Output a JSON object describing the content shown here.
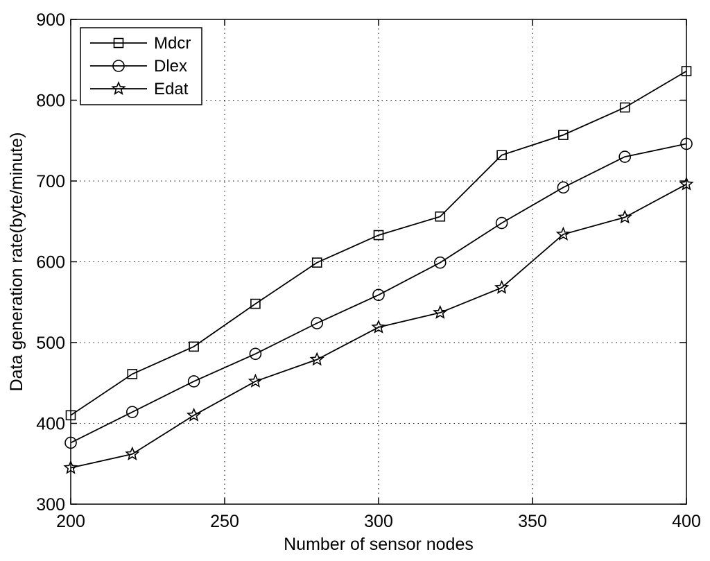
{
  "chart_data": {
    "type": "line",
    "title": "",
    "xlabel": "Number of sensor nodes",
    "ylabel": "Data generation rate(byte/minute)",
    "xlim": [
      200,
      400
    ],
    "ylim": [
      300,
      900
    ],
    "xticks": [
      200,
      250,
      300,
      350,
      400
    ],
    "yticks": [
      300,
      400,
      500,
      600,
      700,
      800,
      900
    ],
    "grid": true,
    "legend_position": "top-left",
    "x": [
      200,
      220,
      240,
      260,
      280,
      300,
      320,
      340,
      360,
      380,
      400
    ],
    "series": [
      {
        "name": "Mdcr",
        "marker": "square",
        "values": [
          410,
          461,
          495,
          548,
          599,
          633,
          656,
          732,
          757,
          791,
          836
        ]
      },
      {
        "name": "Dlex",
        "marker": "circle",
        "values": [
          376,
          414,
          452,
          486,
          524,
          559,
          599,
          648,
          692,
          730,
          746
        ]
      },
      {
        "name": "Edat",
        "marker": "star",
        "values": [
          345,
          362,
          410,
          452,
          479,
          519,
          537,
          568,
          634,
          655,
          696
        ]
      }
    ]
  }
}
